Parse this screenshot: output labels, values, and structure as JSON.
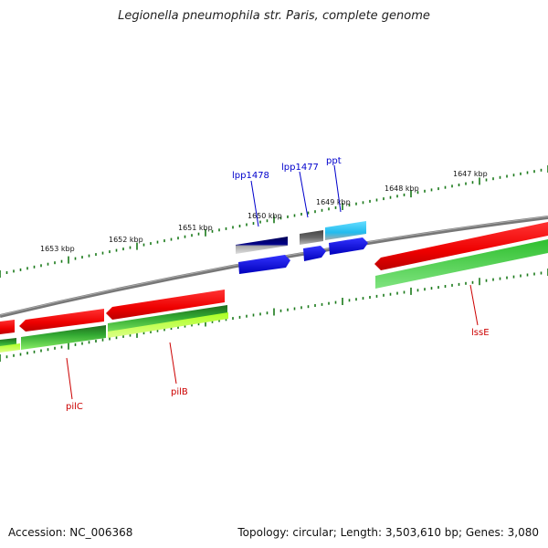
{
  "title": "Legionella pneumophila str. Paris, complete genome",
  "footer": {
    "accession_label": "Accession: NC_006368",
    "stats_label": "Topology: circular; Length: 3,503,610 bp; Genes: 3,080"
  },
  "ticks": {
    "outer": [
      "1653 kbp",
      "1652 kbp",
      "1651 kbp",
      "1650 kbp",
      "1649 kbp",
      "1648 kbp",
      "1647 kbp"
    ]
  },
  "genes": {
    "forward": [
      "lpp1478",
      "lpp1477",
      "ppt"
    ],
    "reverse": [
      "pilC",
      "pilB",
      "lssE"
    ]
  },
  "colors": {
    "forward_label": "#0000cc",
    "reverse_label": "#cc0000",
    "tick": "#1a7a1a",
    "backbone": "#7a7a7a",
    "cds_red": "#ee0000",
    "cds_green_dark": "#2e7d32",
    "cds_green_light": "#33cc33",
    "cds_yellowgreen": "#ccff33",
    "cds_blue": "#0000ee",
    "cds_navy": "#000080",
    "cds_cyan": "#22ccee",
    "cds_gray": "#555555"
  }
}
